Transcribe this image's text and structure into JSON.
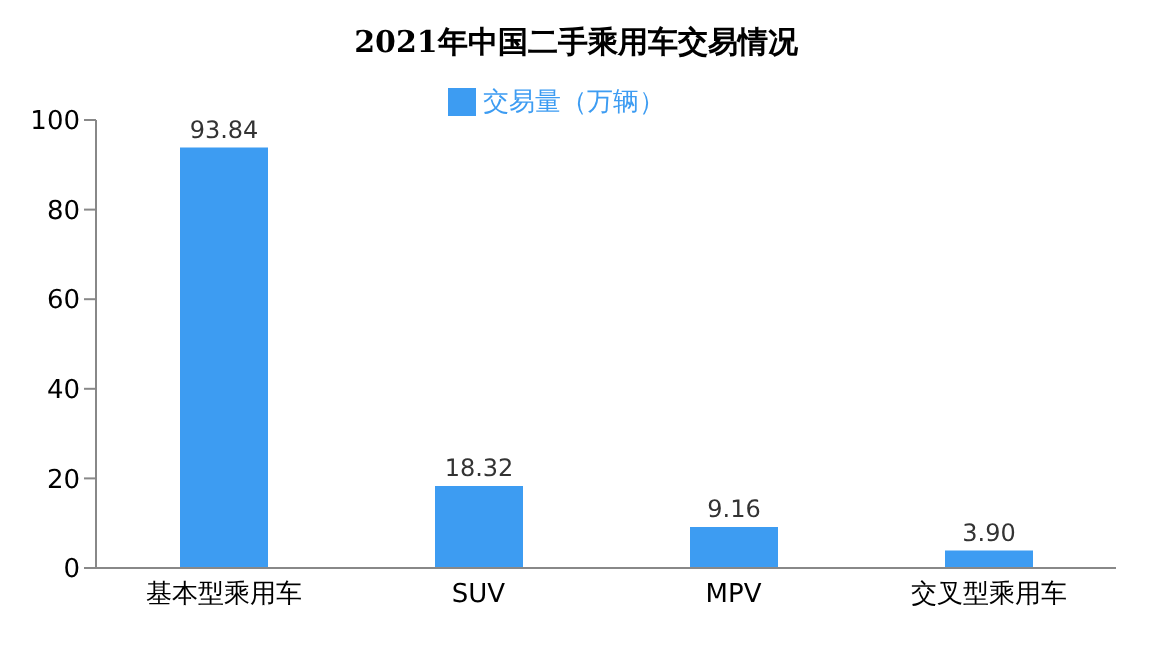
{
  "chart_data": {
    "type": "bar",
    "title": "2021年中国二手乘用车交易情况",
    "categories": [
      "基本型乘用车",
      "SUV",
      "MPV",
      "交叉型乘用车"
    ],
    "series": [
      {
        "name": "交易量（万辆）",
        "color": "#3d9cf2",
        "values": [
          93.84,
          18.32,
          9.16,
          3.9
        ]
      }
    ],
    "value_labels": [
      "93.84",
      "18.32",
      "9.16",
      "3.90"
    ],
    "ylim": [
      0,
      100
    ],
    "yticks": [
      0,
      20,
      40,
      60,
      80,
      100
    ],
    "grid": false,
    "legend": "top"
  }
}
